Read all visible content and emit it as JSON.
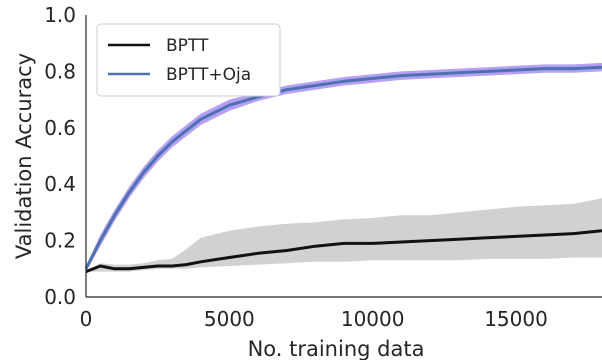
{
  "chart_data": {
    "type": "line",
    "xlabel": "No. training data",
    "ylabel": "Validation Accuracy",
    "xlim": [
      0,
      18000
    ],
    "ylim": [
      0.0,
      1.0
    ],
    "xticks": [
      0,
      5000,
      10000,
      15000
    ],
    "xtick_labels": [
      "0",
      "5000",
      "10000",
      "15000"
    ],
    "yticks": [
      0.0,
      0.2,
      0.4,
      0.6,
      0.8,
      1.0
    ],
    "ytick_labels": [
      "0.0",
      "0.2",
      "0.4",
      "0.6",
      "0.8",
      "1.0"
    ],
    "grid": false,
    "legend_position": "top-left",
    "series": [
      {
        "name": "BPTT",
        "color": "#111111",
        "band_color": "#c9c9c9",
        "x": [
          0,
          500,
          1000,
          1500,
          2000,
          2500,
          3000,
          3500,
          4000,
          5000,
          6000,
          7000,
          8000,
          9000,
          10000,
          11000,
          12000,
          13000,
          14000,
          15000,
          16000,
          17000,
          18000
        ],
        "y": [
          0.09,
          0.11,
          0.1,
          0.1,
          0.105,
          0.11,
          0.11,
          0.115,
          0.125,
          0.14,
          0.155,
          0.165,
          0.18,
          0.19,
          0.19,
          0.195,
          0.2,
          0.205,
          0.21,
          0.215,
          0.22,
          0.225,
          0.235
        ],
        "lower": [
          0.09,
          0.09,
          0.09,
          0.09,
          0.095,
          0.1,
          0.1,
          0.1,
          0.105,
          0.11,
          0.115,
          0.12,
          0.125,
          0.125,
          0.13,
          0.13,
          0.13,
          0.13,
          0.135,
          0.135,
          0.135,
          0.14,
          0.14
        ],
        "upper": [
          0.09,
          0.12,
          0.115,
          0.115,
          0.12,
          0.13,
          0.135,
          0.17,
          0.21,
          0.235,
          0.25,
          0.26,
          0.265,
          0.275,
          0.28,
          0.29,
          0.29,
          0.3,
          0.31,
          0.32,
          0.325,
          0.33,
          0.35
        ]
      },
      {
        "name": "BPTT+Oja",
        "color": "#4c72b0",
        "band_color": "#a98ef2",
        "x": [
          0,
          500,
          1000,
          1500,
          2000,
          2500,
          3000,
          3500,
          4000,
          5000,
          6000,
          7000,
          8000,
          9000,
          10000,
          11000,
          12000,
          13000,
          14000,
          15000,
          16000,
          17000,
          18000
        ],
        "y": [
          0.1,
          0.2,
          0.29,
          0.37,
          0.44,
          0.5,
          0.55,
          0.59,
          0.63,
          0.68,
          0.71,
          0.735,
          0.75,
          0.765,
          0.775,
          0.785,
          0.79,
          0.795,
          0.8,
          0.805,
          0.81,
          0.81,
          0.815
        ],
        "lower": [
          0.09,
          0.18,
          0.27,
          0.35,
          0.42,
          0.48,
          0.53,
          0.57,
          0.61,
          0.66,
          0.695,
          0.72,
          0.735,
          0.75,
          0.76,
          0.77,
          0.775,
          0.78,
          0.785,
          0.79,
          0.795,
          0.795,
          0.8
        ],
        "upper": [
          0.11,
          0.22,
          0.31,
          0.39,
          0.46,
          0.52,
          0.57,
          0.61,
          0.65,
          0.7,
          0.725,
          0.75,
          0.765,
          0.78,
          0.79,
          0.8,
          0.805,
          0.81,
          0.815,
          0.82,
          0.825,
          0.825,
          0.83
        ]
      }
    ]
  }
}
